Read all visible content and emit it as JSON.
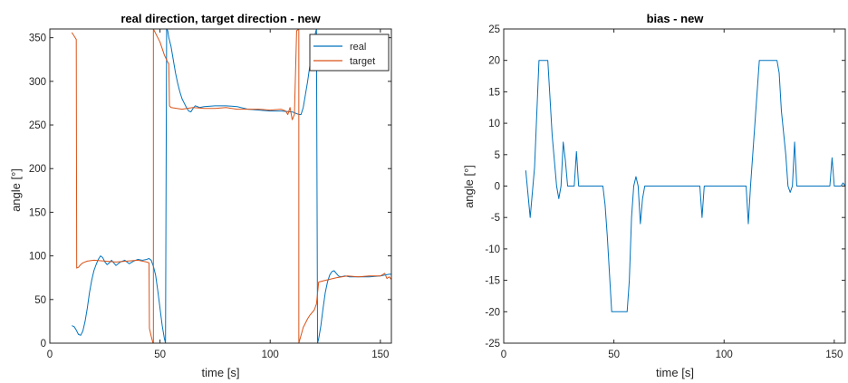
{
  "chart_data": [
    {
      "type": "line",
      "title": "real direction, target direction - new",
      "xlabel": "time [s]",
      "ylabel": "angle [°]",
      "xlim": [
        0,
        155
      ],
      "ylim": [
        0,
        360
      ],
      "xticks": [
        0,
        50,
        100,
        150
      ],
      "yticks": [
        0,
        50,
        100,
        150,
        200,
        250,
        300,
        350
      ],
      "grid": false,
      "legend": "top-right",
      "series": [
        {
          "name": "real",
          "color": "#0072BD",
          "x": [
            10,
            11,
            12,
            13,
            14,
            15,
            16,
            17,
            18,
            19,
            20,
            21,
            22,
            23,
            24,
            25,
            26,
            27,
            28,
            30,
            32,
            34,
            36,
            38,
            40,
            42,
            44,
            45,
            46,
            47,
            48,
            49,
            50,
            51,
            52,
            52.5,
            53,
            53.5,
            54,
            55,
            56,
            57,
            58,
            59,
            60,
            61,
            62,
            63,
            64,
            65,
            66,
            68,
            70,
            75,
            80,
            85,
            90,
            95,
            100,
            105,
            110,
            112,
            113,
            114,
            115,
            116,
            117,
            118,
            119,
            120,
            121,
            121.5,
            122,
            123,
            124,
            125,
            126,
            127,
            128,
            129,
            130,
            131,
            132,
            134,
            136,
            140,
            145,
            150,
            152,
            154,
            155
          ],
          "y": [
            20,
            19,
            15,
            10,
            9,
            14,
            25,
            40,
            58,
            72,
            83,
            90,
            96,
            100,
            98,
            93,
            90,
            92,
            95,
            89,
            93,
            95,
            91,
            94,
            96,
            95,
            96,
            97,
            95,
            88,
            78,
            60,
            40,
            20,
            5,
            0,
            360,
            358,
            350,
            340,
            325,
            310,
            298,
            288,
            280,
            275,
            270,
            266,
            265,
            269,
            272,
            270,
            271,
            272,
            272,
            271,
            268,
            267,
            266,
            266,
            265,
            263,
            262,
            262,
            270,
            285,
            300,
            318,
            335,
            350,
            360,
            0,
            5,
            20,
            40,
            58,
            70,
            78,
            82,
            83,
            80,
            77,
            76,
            77,
            76,
            76,
            76,
            77,
            78,
            79,
            79
          ]
        },
        {
          "name": "target",
          "color": "#D95319",
          "x": [
            10,
            11.5,
            12,
            12.2,
            13,
            14,
            15,
            17,
            20,
            25,
            30,
            35,
            40,
            44,
            45,
            45.2,
            46,
            46.5,
            46.8,
            47,
            47,
            50,
            52,
            53.5,
            54,
            54.3,
            55,
            60,
            65,
            70,
            75,
            80,
            85,
            90,
            95,
            100,
            105,
            107,
            108,
            109,
            110,
            111,
            112,
            113,
            113,
            115,
            117,
            118,
            120,
            121,
            122,
            125,
            130,
            135,
            140,
            145,
            150,
            152,
            153,
            154,
            155
          ],
          "y": [
            356,
            350,
            348,
            86,
            87,
            90,
            92,
            94,
            95,
            94,
            93,
            94,
            95,
            93,
            92,
            17,
            8,
            3,
            0,
            0,
            360,
            345,
            330,
            322,
            320,
            272,
            270,
            268,
            270,
            269,
            269,
            270,
            268,
            268,
            268,
            267,
            268,
            266,
            262,
            270,
            256,
            262,
            358,
            360,
            0,
            18,
            28,
            32,
            38,
            45,
            70,
            72,
            75,
            77,
            76,
            77,
            77,
            80,
            74,
            76,
            73
          ]
        }
      ]
    },
    {
      "type": "line",
      "title": "bias - new",
      "xlabel": "time [s]",
      "ylabel": "angle [°]",
      "xlim": [
        0,
        155
      ],
      "ylim": [
        -25,
        25
      ],
      "xticks": [
        0,
        50,
        100,
        150
      ],
      "yticks": [
        -25,
        -20,
        -15,
        -10,
        -5,
        0,
        5,
        10,
        15,
        20,
        25
      ],
      "grid": false,
      "series": [
        {
          "color": "#0072BD",
          "x": [
            10,
            12,
            14,
            16,
            18,
            20,
            21,
            22,
            24,
            25,
            26,
            27,
            28,
            29,
            30,
            32,
            33,
            34,
            35,
            36,
            45,
            46,
            47,
            48,
            49,
            50,
            53,
            56,
            57,
            58,
            59,
            60,
            61,
            62,
            63,
            64,
            66,
            70,
            80,
            89,
            90,
            91,
            100,
            110,
            111,
            112,
            114,
            116,
            118,
            120,
            122,
            123,
            124,
            125,
            126,
            128,
            129,
            130,
            131,
            132,
            133,
            134,
            135,
            136,
            140,
            148,
            149,
            150,
            153,
            154,
            155
          ],
          "y": [
            2.5,
            -5,
            3,
            20,
            20,
            20,
            14,
            8,
            0,
            -2,
            0,
            7,
            4,
            0,
            0,
            0,
            5.5,
            0,
            0,
            0,
            0,
            -3,
            -8,
            -14,
            -20,
            -20,
            -20,
            -20,
            -15,
            -5,
            0,
            1.5,
            0,
            -6,
            -2,
            0,
            0,
            0,
            0,
            0,
            -5,
            0,
            0,
            0,
            -6,
            0,
            10,
            20,
            20,
            20,
            20,
            20,
            20,
            18,
            12,
            5,
            0,
            -1,
            0,
            7,
            0,
            0,
            0,
            0,
            0,
            0,
            4.5,
            0,
            0,
            0.5,
            0
          ]
        }
      ]
    }
  ]
}
